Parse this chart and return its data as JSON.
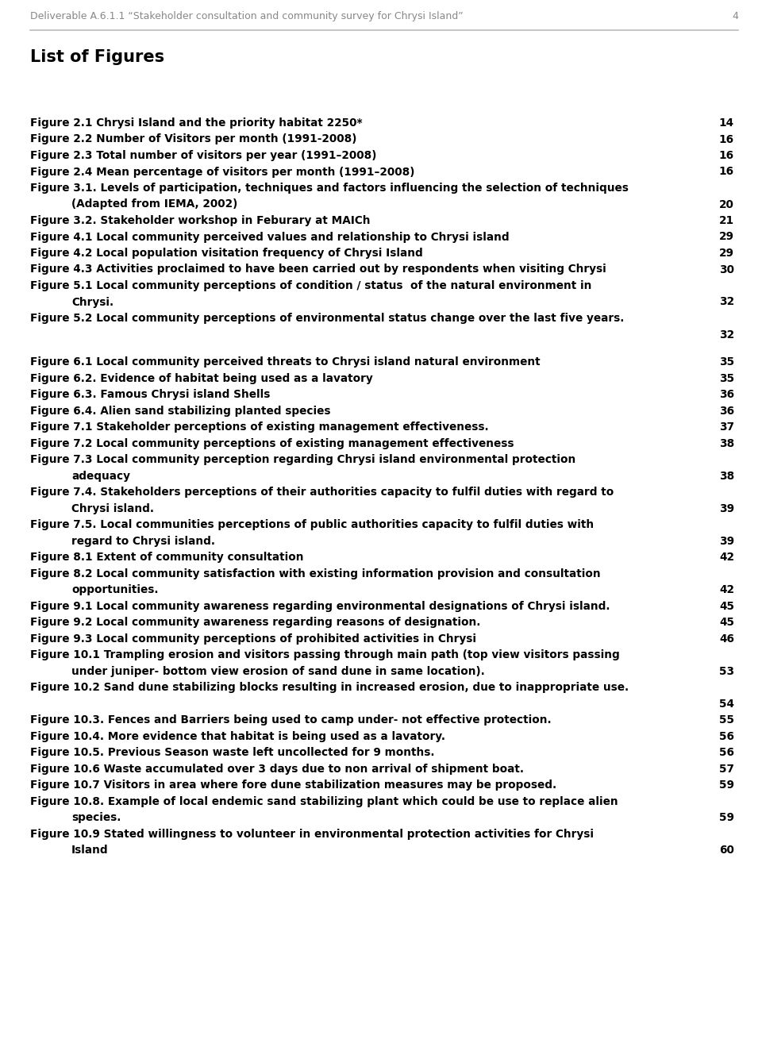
{
  "header_text": "Deliverable A.6.1.1 “Stakeholder consultation and community survey for Chrysi Island”",
  "header_page": "4",
  "title": "List of Figures",
  "bg_color": "#ffffff",
  "text_color": "#000000",
  "header_color": "#888888",
  "figures": [
    {
      "label": "Figure 2.1 Chrysi Island and the priority habitat 2250*",
      "page": "14",
      "indent": false
    },
    {
      "label": "Figure 2.2 Number of Visitors per month (1991-2008)",
      "page": "16",
      "indent": false
    },
    {
      "label": "Figure 2.3 Total number of visitors per year (1991–2008)",
      "page": "16",
      "indent": false
    },
    {
      "label": "Figure 2.4 Mean percentage of visitors per month (1991–2008)",
      "page": "16",
      "indent": false
    },
    {
      "label": "Figure 3.1. Levels of participation, techniques and factors influencing the selection of techniques",
      "page": "",
      "indent": false
    },
    {
      "label": "(Adapted from IEMA, 2002)",
      "page": "20",
      "indent": true
    },
    {
      "label": "Figure 3.2. Stakeholder workshop in Feburary at MAICh",
      "page": "21",
      "indent": false
    },
    {
      "label": "Figure 4.1 Local community perceived values and relationship to Chrysi island",
      "page": "29",
      "indent": false
    },
    {
      "label": "Figure 4.2 Local population visitation frequency of Chrysi Island",
      "page": "29",
      "indent": false
    },
    {
      "label": "Figure 4.3 Activities proclaimed to have been carried out by respondents when visiting Chrysi",
      "page": "30",
      "indent": false
    },
    {
      "label": "Figure 5.1 Local community perceptions of condition / status  of the natural environment in",
      "page": "",
      "indent": false
    },
    {
      "label": "Chrysi.",
      "page": "32",
      "indent": true
    },
    {
      "label": "Figure 5.2 Local community perceptions of environmental status change over the last five years.",
      "page": "",
      "indent": false
    },
    {
      "label": "",
      "page": "32",
      "indent": true
    },
    {
      "label": "",
      "page": "",
      "indent": false
    },
    {
      "label": "Figure 6.1 Local community perceived threats to Chrysi island natural environment",
      "page": "35",
      "indent": false
    },
    {
      "label": "Figure 6.2. Evidence of habitat being used as a lavatory",
      "page": "35",
      "indent": false
    },
    {
      "label": "Figure 6.3. Famous Chrysi island Shells",
      "page": "36",
      "indent": false
    },
    {
      "label": "Figure 6.4. Alien sand stabilizing planted species",
      "page": "36",
      "indent": false
    },
    {
      "label": "Figure 7.1 Stakeholder perceptions of existing management effectiveness.",
      "page": "37",
      "indent": false
    },
    {
      "label": "Figure 7.2 Local community perceptions of existing management effectiveness",
      "page": "38",
      "indent": false
    },
    {
      "label": "Figure 7.3 Local community perception regarding Chrysi island environmental protection",
      "page": "",
      "indent": false
    },
    {
      "label": "adequacy",
      "page": "38",
      "indent": true
    },
    {
      "label": "Figure 7.4. Stakeholders perceptions of their authorities capacity to fulfil duties with regard to",
      "page": "",
      "indent": false
    },
    {
      "label": "Chrysi island.",
      "page": "39",
      "indent": true
    },
    {
      "label": "Figure 7.5. Local communities perceptions of public authorities capacity to fulfil duties with",
      "page": "",
      "indent": false
    },
    {
      "label": "regard to Chrysi island.",
      "page": "39",
      "indent": true
    },
    {
      "label": "Figure 8.1 Extent of community consultation",
      "page": "42",
      "indent": false
    },
    {
      "label": "Figure 8.2 Local community satisfaction with existing information provision and consultation",
      "page": "",
      "indent": false
    },
    {
      "label": "opportunities.",
      "page": "42",
      "indent": true
    },
    {
      "label": "Figure 9.1 Local community awareness regarding environmental designations of Chrysi island.",
      "page": "45",
      "indent": false
    },
    {
      "label": "Figure 9.2 Local community awareness regarding reasons of designation.",
      "page": "45",
      "indent": false
    },
    {
      "label": "Figure 9.3 Local community perceptions of prohibited activities in Chrysi",
      "page": "46",
      "indent": false
    },
    {
      "label": "Figure 10.1 Trampling erosion and visitors passing through main path (top view visitors passing",
      "page": "",
      "indent": false
    },
    {
      "label": "under juniper- bottom view erosion of sand dune in same location).",
      "page": "53",
      "indent": true
    },
    {
      "label": "Figure 10.2 Sand dune stabilizing blocks resulting in increased erosion, due to inappropriate use.",
      "page": "",
      "indent": false
    },
    {
      "label": "",
      "page": "54",
      "indent": true
    },
    {
      "label": "Figure 10.3. Fences and Barriers being used to camp under- not effective protection.",
      "page": "55",
      "indent": false
    },
    {
      "label": "Figure 10.4. More evidence that habitat is being used as a lavatory.",
      "page": "56",
      "indent": false
    },
    {
      "label": "Figure 10.5. Previous Season waste left uncollected for 9 months.",
      "page": "56",
      "indent": false
    },
    {
      "label": "Figure 10.6 Waste accumulated over 3 days due to non arrival of shipment boat.",
      "page": "57",
      "indent": false
    },
    {
      "label": "Figure 10.7 Visitors in area where fore dune stabilization measures may be proposed.",
      "page": "59",
      "indent": false
    },
    {
      "label": "Figure 10.8. Example of local endemic sand stabilizing plant which could be use to replace alien",
      "page": "",
      "indent": false
    },
    {
      "label": "species.",
      "page": "59",
      "indent": true
    },
    {
      "label": "Figure 10.9 Stated willingness to volunteer in environmental protection activities for Chrysi",
      "page": "",
      "indent": false
    },
    {
      "label": "Island",
      "page": "60",
      "indent": true
    }
  ]
}
